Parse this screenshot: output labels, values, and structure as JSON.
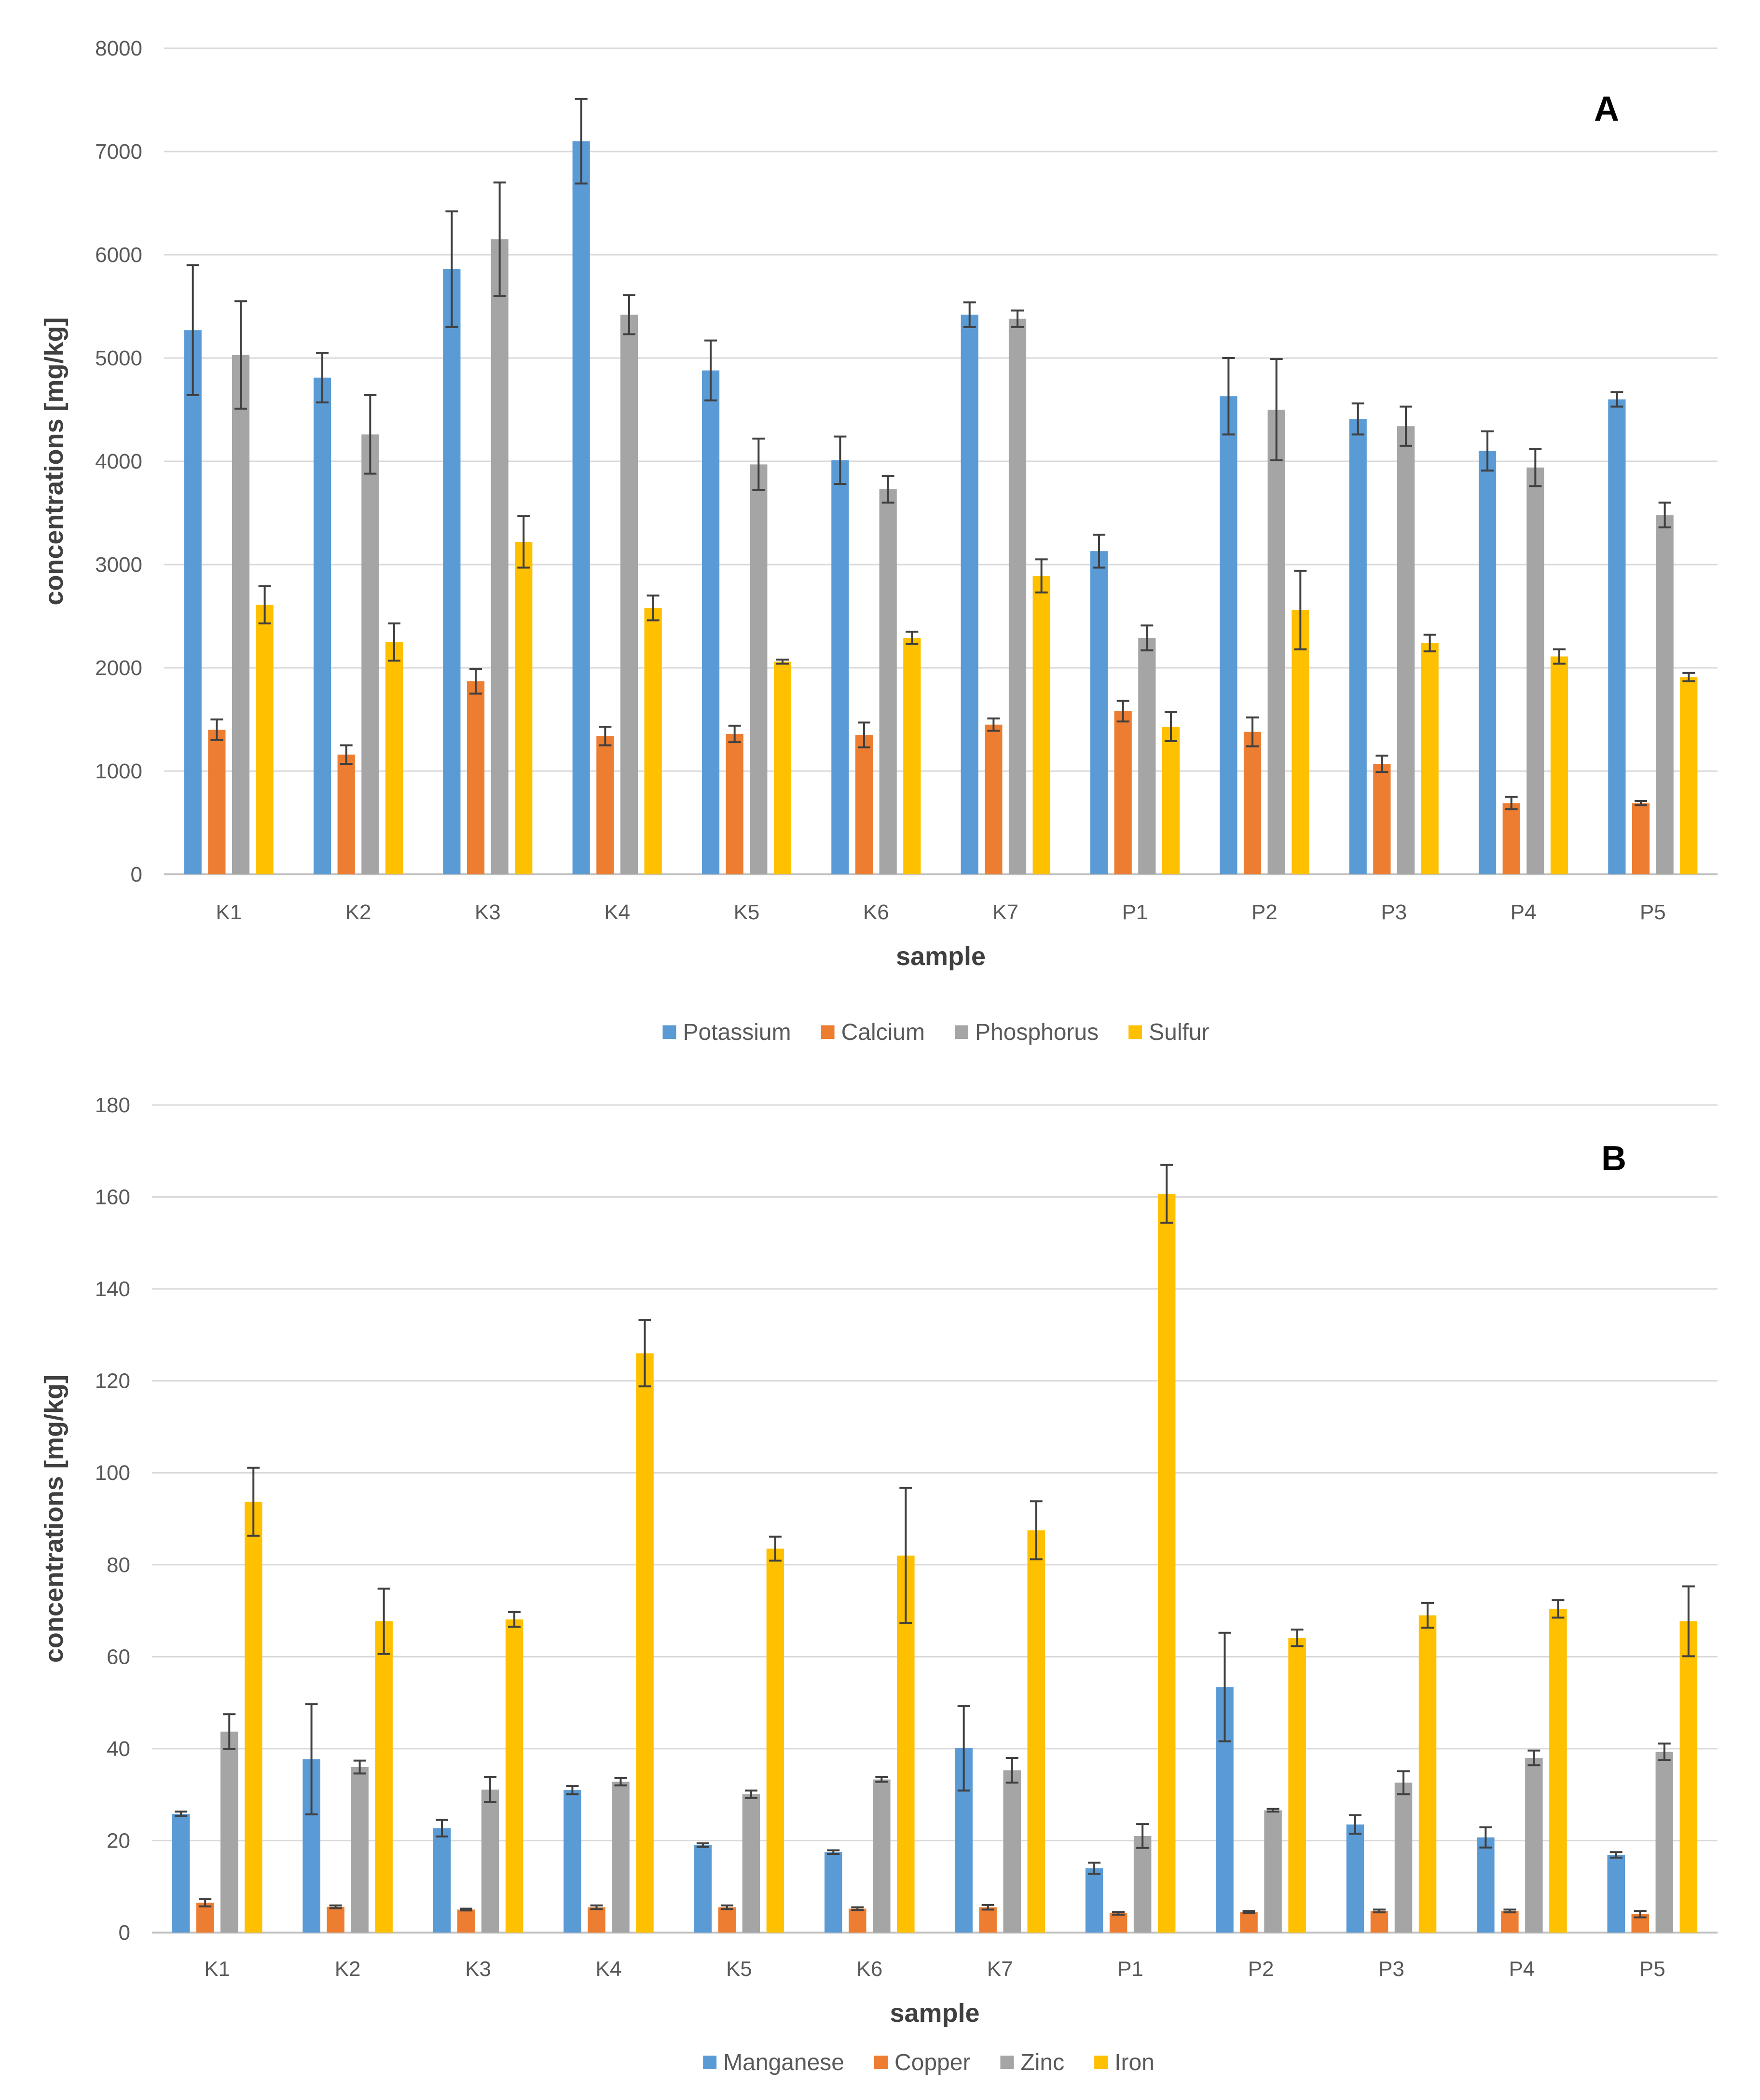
{
  "chart_data": [
    {
      "type": "bar",
      "panel_label": "A",
      "title": "",
      "xlabel": "sample",
      "ylabel": "concentrations [mg/kg]",
      "ylim": [
        0,
        8000
      ],
      "yticks": [
        0,
        1000,
        2000,
        3000,
        4000,
        5000,
        6000,
        7000,
        8000
      ],
      "grid": true,
      "legend_position": "bottom",
      "categories": [
        "K1",
        "K2",
        "K3",
        "K4",
        "K5",
        "K6",
        "K7",
        "P1",
        "P2",
        "P3",
        "P4",
        "P5"
      ],
      "series": [
        {
          "name": "Potassium",
          "color": "#5b9bd5",
          "values": [
            5270,
            4810,
            5860,
            7100,
            4880,
            4010,
            5420,
            3130,
            4630,
            4410,
            4100,
            4600
          ],
          "errors": [
            630,
            240,
            560,
            410,
            290,
            230,
            120,
            160,
            370,
            150,
            190,
            70
          ]
        },
        {
          "name": "Calcium",
          "color": "#ed7d31",
          "values": [
            1400,
            1160,
            1870,
            1340,
            1360,
            1350,
            1450,
            1580,
            1380,
            1070,
            690,
            690
          ]
        },
        {
          "name": "Phosphorus",
          "color": "#a5a5a5",
          "values": [
            5030,
            4260,
            6150,
            5420,
            3970,
            3730,
            5380,
            2290,
            4500,
            4340,
            3940,
            3480
          ],
          "errors": [
            520,
            380,
            550,
            190,
            250,
            130,
            80,
            120,
            490,
            190,
            180,
            120
          ]
        },
        {
          "name": "Sulfur",
          "color": "#ffc000",
          "values": [
            2610,
            2250,
            3220,
            2580,
            2060,
            2290,
            2890,
            1430,
            2560,
            2240,
            2110,
            1910
          ],
          "errors": [
            180,
            180,
            250,
            120,
            20,
            60,
            160,
            140,
            380,
            80,
            70,
            40
          ]
        }
      ],
      "calcium_errors": [
        100,
        90,
        120,
        90,
        80,
        120,
        60,
        100,
        140,
        80,
        60,
        20
      ]
    },
    {
      "type": "bar",
      "panel_label": "B",
      "title": "",
      "xlabel": "sample",
      "ylabel": "concentrations [mg/kg]",
      "ylim": [
        0,
        180
      ],
      "yticks": [
        0,
        20,
        40,
        60,
        80,
        100,
        120,
        140,
        160,
        180
      ],
      "grid": true,
      "legend_position": "bottom",
      "categories": [
        "K1",
        "K2",
        "K3",
        "K4",
        "K5",
        "K6",
        "K7",
        "P1",
        "P2",
        "P3",
        "P4",
        "P5"
      ],
      "series": [
        {
          "name": "Manganese",
          "color": "#5b9bd5",
          "values": [
            25.8,
            37.7,
            22.7,
            31.0,
            19.0,
            17.5,
            40.1,
            14.0,
            53.4,
            23.5,
            20.7,
            16.9
          ],
          "errors": [
            0.5,
            12.0,
            1.8,
            0.9,
            0.4,
            0.4,
            9.2,
            1.2,
            11.8,
            2.0,
            2.2,
            0.6
          ]
        },
        {
          "name": "Copper",
          "color": "#ed7d31",
          "values": [
            6.5,
            5.6,
            5.0,
            5.5,
            5.5,
            5.2,
            5.5,
            4.2,
            4.5,
            4.7,
            4.7,
            4.0
          ],
          "errors": [
            0.8,
            0.3,
            0.2,
            0.4,
            0.4,
            0.3,
            0.5,
            0.3,
            0.2,
            0.3,
            0.3,
            0.7
          ]
        },
        {
          "name": "Zinc",
          "color": "#a5a5a5",
          "values": [
            43.7,
            36.0,
            31.1,
            32.8,
            30.1,
            33.3,
            35.3,
            21.0,
            26.6,
            32.6,
            38.0,
            39.3
          ],
          "errors": [
            3.8,
            1.4,
            2.7,
            0.8,
            0.8,
            0.5,
            2.7,
            2.6,
            0.3,
            2.5,
            1.6,
            1.8
          ]
        },
        {
          "name": "Iron",
          "color": "#ffc000",
          "values": [
            93.7,
            67.7,
            68.1,
            126.0,
            83.5,
            82.0,
            87.5,
            160.7,
            64.1,
            69.0,
            70.4,
            67.7
          ],
          "errors": [
            7.4,
            7.1,
            1.6,
            7.2,
            2.6,
            14.7,
            6.3,
            6.3,
            1.8,
            2.7,
            1.9,
            7.6
          ]
        }
      ]
    }
  ]
}
